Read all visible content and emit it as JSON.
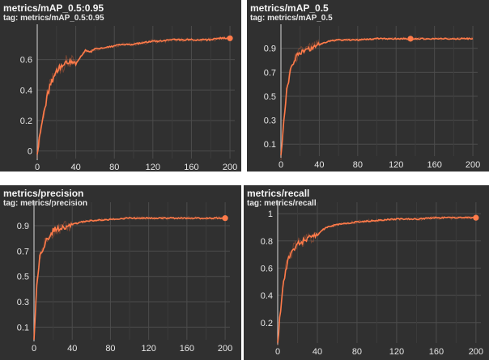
{
  "panels": [
    {
      "title": "metrics/mAP_0.5:0.95",
      "tag": "tag: metrics/mAP_0.5:0.95"
    },
    {
      "title": "metrics/mAP_0.5",
      "tag": "tag: metrics/mAP_0.5"
    },
    {
      "title": "metrics/precision",
      "tag": "tag: metrics/precision"
    },
    {
      "title": "metrics/recall",
      "tag": "tag: metrics/recall"
    }
  ],
  "colors": {
    "line": "#f26b3a",
    "smoothed": "#ff7b4a",
    "background": "#303030",
    "grid": "#4c4c4c",
    "axis": "#bdbdbd",
    "tick_text": "#e6e6e6"
  },
  "chart_data": [
    {
      "type": "line",
      "title": "metrics/mAP_0.5:0.95",
      "xlabel": "",
      "ylabel": "",
      "xlim": [
        0,
        205
      ],
      "ylim": [
        -0.05,
        0.8
      ],
      "xticks": [
        0,
        40,
        80,
        120,
        160,
        200
      ],
      "yticks": [
        0,
        0.2,
        0.4,
        0.6
      ],
      "ytick_labels": [
        "0",
        "0.2",
        "0.4",
        "0.6"
      ],
      "grid": true,
      "series": [
        {
          "x": [
            0,
            3,
            6,
            10,
            14,
            18,
            22,
            26,
            30,
            35,
            40,
            45,
            50,
            55,
            60,
            70,
            80,
            90,
            100,
            110,
            120,
            130,
            140,
            150,
            160,
            170,
            180,
            190,
            200
          ],
          "y": [
            0,
            0.1,
            0.22,
            0.35,
            0.44,
            0.5,
            0.54,
            0.56,
            0.58,
            0.58,
            0.57,
            0.62,
            0.66,
            0.65,
            0.67,
            0.68,
            0.69,
            0.7,
            0.7,
            0.71,
            0.72,
            0.72,
            0.73,
            0.73,
            0.73,
            0.73,
            0.73,
            0.74,
            0.74
          ]
        }
      ]
    },
    {
      "type": "line",
      "title": "metrics/mAP_0.5",
      "xlabel": "",
      "ylabel": "",
      "xlim": [
        0,
        205
      ],
      "ylim": [
        0,
        1.06
      ],
      "xticks": [
        0,
        40,
        80,
        120,
        160,
        200
      ],
      "yticks": [
        0.1,
        0.3,
        0.5,
        0.7,
        0.9
      ],
      "ytick_labels": [
        "0.1",
        "0.3",
        "0.5",
        "0.7",
        "0.9"
      ],
      "grid": true,
      "series": [
        {
          "x": [
            0,
            3,
            6,
            10,
            14,
            18,
            22,
            26,
            30,
            35,
            40,
            50,
            60,
            80,
            100,
            120,
            135,
            160,
            180,
            200
          ],
          "y": [
            0,
            0.3,
            0.55,
            0.72,
            0.8,
            0.85,
            0.88,
            0.89,
            0.9,
            0.91,
            0.93,
            0.96,
            0.97,
            0.97,
            0.98,
            0.98,
            0.98,
            0.98,
            0.98,
            0.98
          ]
        }
      ]
    },
    {
      "type": "line",
      "title": "metrics/precision",
      "xlabel": "",
      "ylabel": "",
      "xlim": [
        0,
        205
      ],
      "ylim": [
        0,
        1.06
      ],
      "xticks": [
        0,
        40,
        80,
        120,
        160,
        200
      ],
      "yticks": [
        0.1,
        0.3,
        0.5,
        0.7,
        0.9
      ],
      "ytick_labels": [
        "0.1",
        "0.3",
        "0.5",
        "0.7",
        "0.9"
      ],
      "grid": true,
      "series": [
        {
          "x": [
            0,
            3,
            6,
            10,
            14,
            18,
            22,
            26,
            30,
            35,
            40,
            50,
            60,
            80,
            100,
            120,
            140,
            160,
            180,
            200
          ],
          "y": [
            0,
            0.45,
            0.65,
            0.74,
            0.8,
            0.84,
            0.88,
            0.87,
            0.88,
            0.89,
            0.91,
            0.93,
            0.94,
            0.95,
            0.96,
            0.96,
            0.96,
            0.96,
            0.96,
            0.96
          ]
        }
      ]
    },
    {
      "type": "line",
      "title": "metrics/recall",
      "xlabel": "",
      "ylabel": "",
      "xlim": [
        0,
        205
      ],
      "ylim": [
        0.05,
        1.06
      ],
      "xticks": [
        0,
        40,
        80,
        120,
        160,
        200
      ],
      "yticks": [
        0.2,
        0.4,
        0.6,
        0.8,
        1
      ],
      "ytick_labels": [
        "0.2",
        "0.4",
        "0.6",
        "0.8",
        "1"
      ],
      "grid": true,
      "series": [
        {
          "x": [
            0,
            3,
            6,
            10,
            14,
            18,
            22,
            26,
            30,
            35,
            40,
            45,
            50,
            60,
            80,
            100,
            120,
            140,
            160,
            180,
            200
          ],
          "y": [
            0.05,
            0.3,
            0.5,
            0.65,
            0.72,
            0.76,
            0.78,
            0.8,
            0.82,
            0.82,
            0.84,
            0.88,
            0.9,
            0.92,
            0.94,
            0.95,
            0.96,
            0.96,
            0.97,
            0.97,
            0.97
          ]
        }
      ]
    }
  ]
}
